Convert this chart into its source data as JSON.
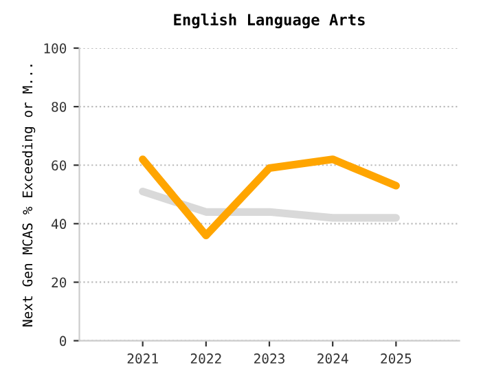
{
  "chart_data": {
    "type": "line",
    "title": "English Language Arts",
    "ylabel": "Next Gen MCAS % Exceeding or M...",
    "categories": [
      "2021",
      "2022",
      "2023",
      "2024",
      "2025"
    ],
    "series": [
      {
        "color": "#d9d9d9",
        "values": [
          51,
          44,
          44,
          42,
          42
        ]
      },
      {
        "color": "#ffa500",
        "values": [
          62,
          36,
          59,
          62,
          53
        ]
      }
    ],
    "ylim": [
      0,
      100
    ],
    "yticks": [
      0,
      20,
      40,
      60,
      80,
      100
    ],
    "grid": "y",
    "marker": "none",
    "line_style": "solid"
  }
}
